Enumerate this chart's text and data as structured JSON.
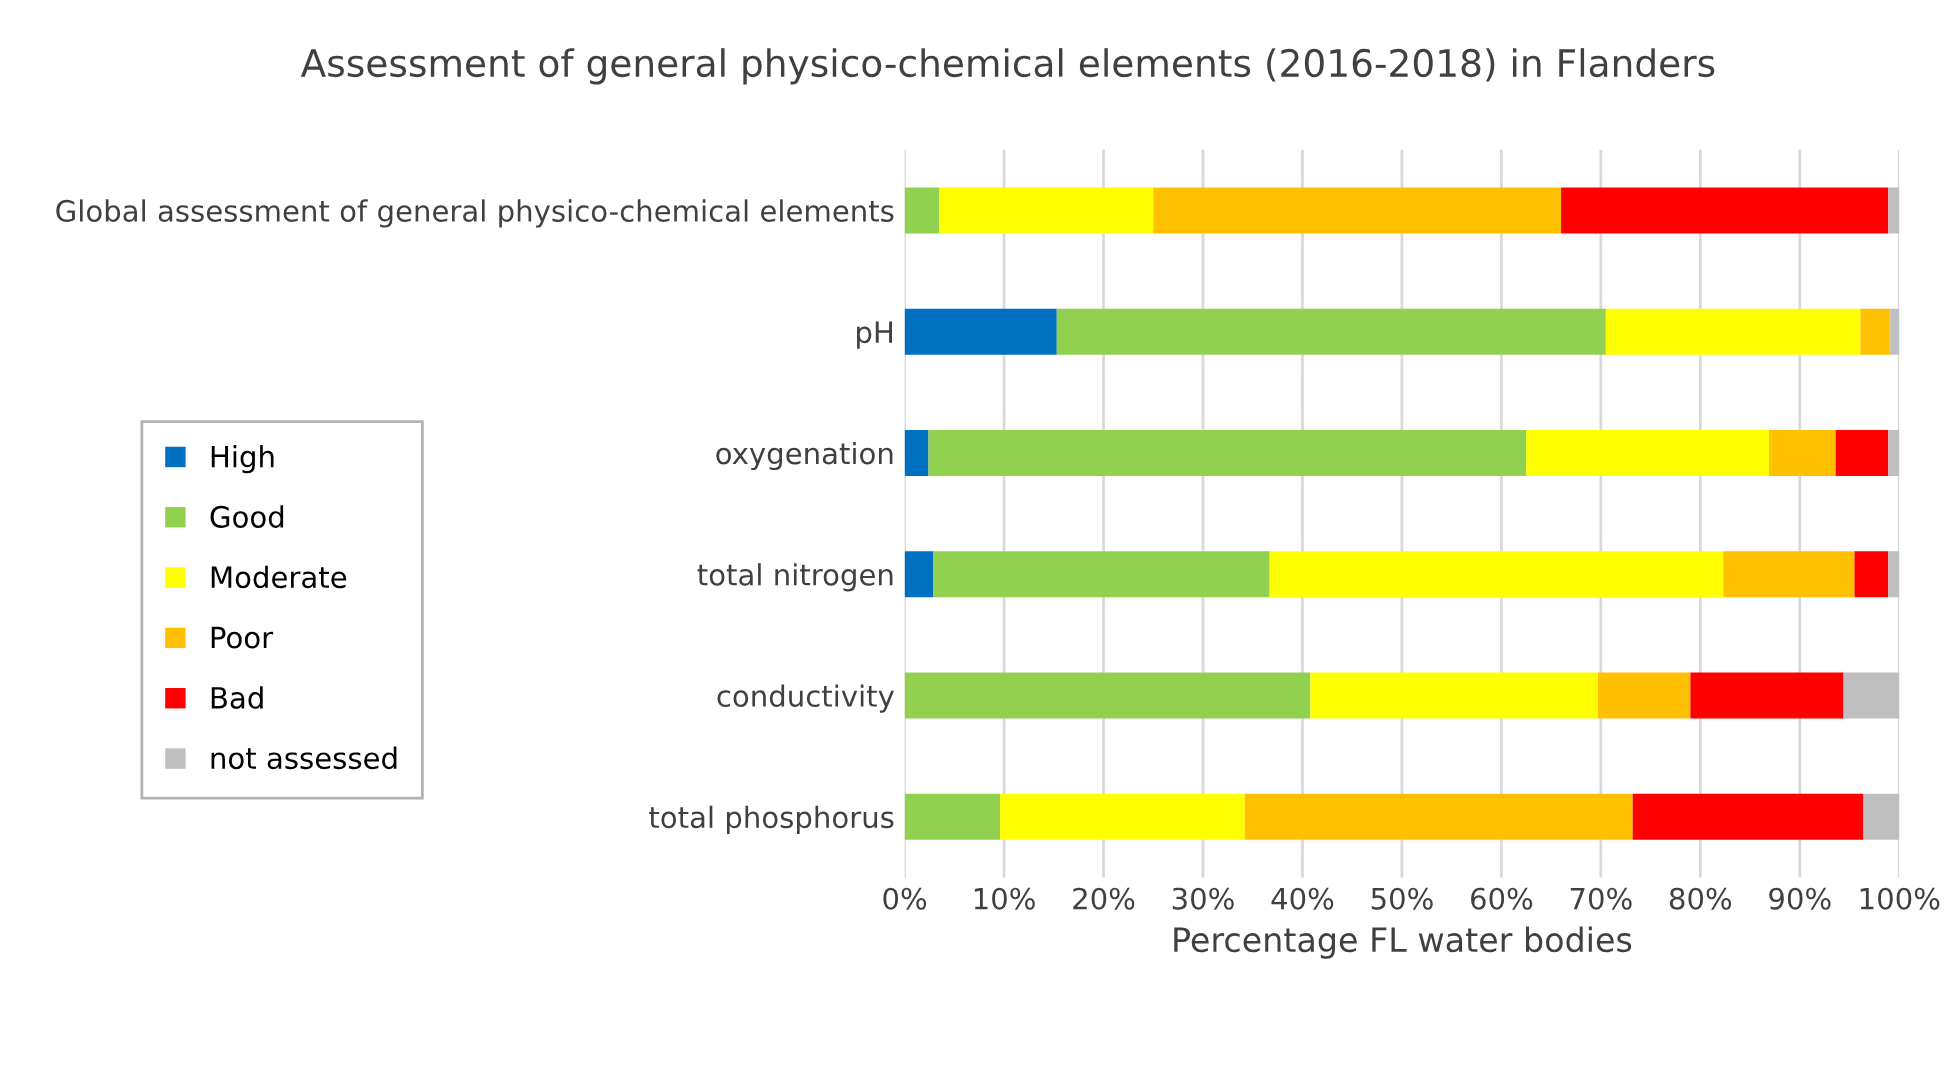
{
  "chart_data": {
    "type": "bar",
    "orientation": "horizontal",
    "stacked": true,
    "title": "Assessment of general physico-chemical elements (2016-2018) in Flanders",
    "xlabel": "Percentage FL water bodies",
    "categories": [
      "Global assessment of general physico-chemical elements",
      "pH",
      "oxygenation",
      "total nitrogen",
      "conductivity",
      "total phosphorus"
    ],
    "series": [
      {
        "name": "High",
        "color": "#0070c0",
        "values": [
          0,
          15.3,
          2.4,
          2.9,
          0,
          0
        ]
      },
      {
        "name": "Good",
        "color": "#92d050",
        "values": [
          3.5,
          55.2,
          60.1,
          33.8,
          40.8,
          9.6
        ]
      },
      {
        "name": "Moderate",
        "color": "#ffff00",
        "values": [
          21.5,
          25.6,
          24.4,
          45.6,
          28.9,
          24.6
        ]
      },
      {
        "name": "Poor",
        "color": "#ffc000",
        "values": [
          41.0,
          3.0,
          6.7,
          13.2,
          9.3,
          39.0
        ]
      },
      {
        "name": "Bad",
        "color": "#ff0000",
        "values": [
          32.9,
          0,
          5.3,
          3.4,
          15.4,
          23.2
        ]
      },
      {
        "name": "not assessed",
        "color": "#bfbfbf",
        "values": [
          1.1,
          0.9,
          1.1,
          1.1,
          5.6,
          3.6
        ]
      }
    ],
    "xlim": [
      0,
      100
    ],
    "xticks": [
      {
        "value": 0,
        "label": "0%"
      },
      {
        "value": 10,
        "label": "10%"
      },
      {
        "value": 20,
        "label": "20%"
      },
      {
        "value": 30,
        "label": "30%"
      },
      {
        "value": 40,
        "label": "40%"
      },
      {
        "value": 50,
        "label": "50%"
      },
      {
        "value": 60,
        "label": "60%"
      },
      {
        "value": 70,
        "label": "70%"
      },
      {
        "value": 80,
        "label": "80%"
      },
      {
        "value": 90,
        "label": "90%"
      },
      {
        "value": 100,
        "label": "100%"
      }
    ],
    "grid": "x",
    "legend": "left"
  }
}
